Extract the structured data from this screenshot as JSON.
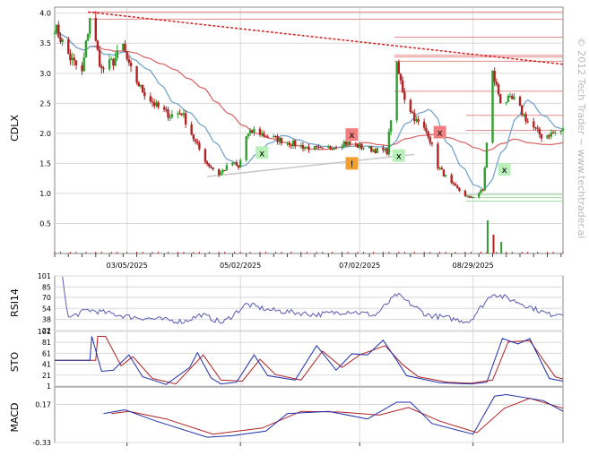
{
  "ticker": "CDLX",
  "watermark": "© 2012 Tech Trader ~ www.techtrader.ai",
  "colors": {
    "up": "#2fa02f",
    "down": "#b22222",
    "ma_short": "#6b9fc9",
    "ma_long": "#d96060",
    "trend": "#d42020",
    "support": "#c8c8c8",
    "rsi": "#5a5ab4",
    "osc_a": "#1f2fa8",
    "osc_b": "#b02020",
    "sell_marker": "#f08080",
    "buy_marker": "#b9efb9",
    "warn_marker": "#f0a030",
    "grid": "#d8d8d8"
  },
  "chart_data": [
    {
      "type": "candlestick",
      "title": "CDLX",
      "ylabel": "CDLX",
      "x_range": [
        "2025-01-27",
        "2025-10-14"
      ],
      "ylim": [
        0,
        4.1
      ],
      "yticks": [
        0.5,
        1.0,
        1.5,
        2.0,
        2.5,
        3.0,
        3.5,
        4.0
      ],
      "xticks": [
        "03/05/2025",
        "05/02/2025",
        "07/02/2025",
        "08/29/2025"
      ],
      "grid": true,
      "close_path": [
        [
          "2025-01-27",
          3.78
        ],
        [
          "2025-02-04",
          3.25
        ],
        [
          "2025-02-10",
          3.0
        ],
        [
          "2025-02-14",
          3.95
        ],
        [
          "2025-02-20",
          3.05
        ],
        [
          "2025-02-26",
          3.2
        ],
        [
          "2025-03-03",
          3.45
        ],
        [
          "2025-03-06",
          3.1
        ],
        [
          "2025-03-12",
          2.75
        ],
        [
          "2025-03-20",
          2.45
        ],
        [
          "2025-03-27",
          2.3
        ],
        [
          "2025-04-02",
          2.35
        ],
        [
          "2025-04-09",
          1.85
        ],
        [
          "2025-04-15",
          1.5
        ],
        [
          "2025-04-21",
          1.32
        ],
        [
          "2025-04-28",
          1.52
        ],
        [
          "2025-05-01",
          1.42
        ],
        [
          "2025-05-05",
          1.95
        ],
        [
          "2025-05-09",
          2.05
        ],
        [
          "2025-05-16",
          1.95
        ],
        [
          "2025-05-23",
          1.88
        ],
        [
          "2025-06-03",
          1.78
        ],
        [
          "2025-06-13",
          1.72
        ],
        [
          "2025-06-24",
          1.85
        ],
        [
          "2025-07-02",
          1.78
        ],
        [
          "2025-07-10",
          1.72
        ],
        [
          "2025-07-16",
          1.7
        ],
        [
          "2025-07-21",
          3.1
        ],
        [
          "2025-07-25",
          2.6
        ],
        [
          "2025-07-31",
          2.2
        ],
        [
          "2025-08-06",
          2.0
        ],
        [
          "2025-08-11",
          1.45
        ],
        [
          "2025-08-18",
          1.15
        ],
        [
          "2025-08-27",
          0.92
        ],
        [
          "2025-09-03",
          1.05
        ],
        [
          "2025-09-08",
          3.0
        ],
        [
          "2025-09-12",
          2.55
        ],
        [
          "2025-09-19",
          2.55
        ],
        [
          "2025-09-26",
          2.2
        ],
        [
          "2025-10-03",
          1.95
        ],
        [
          "2025-10-14",
          2.05
        ]
      ],
      "trend_line": [
        [
          "2025-02-13",
          4.02
        ],
        [
          "2025-10-14",
          3.15
        ]
      ],
      "support_line": [
        [
          "2025-04-15",
          1.28
        ],
        [
          "2025-07-30",
          1.65
        ]
      ],
      "horizontal_levels": [
        4.02,
        3.9,
        3.6,
        3.3,
        3.27,
        3.2,
        2.7,
        2.3,
        2.05,
        0.98,
        0.93,
        0.87
      ],
      "markers": [
        {
          "date": "2025-05-13",
          "price": 1.68,
          "kind": "buy",
          "label": "x"
        },
        {
          "date": "2025-06-28",
          "price": 1.98,
          "kind": "sell",
          "label": "x"
        },
        {
          "date": "2025-06-28",
          "price": 1.5,
          "kind": "warning",
          "label": "!"
        },
        {
          "date": "2025-07-22",
          "price": 1.63,
          "kind": "buy",
          "label": "x"
        },
        {
          "date": "2025-08-12",
          "price": 2.02,
          "kind": "sell",
          "label": "x"
        },
        {
          "date": "2025-09-14",
          "price": 1.4,
          "kind": "buy",
          "label": "x"
        }
      ]
    },
    {
      "type": "line",
      "ylabel": "RSI14",
      "ylim": [
        22,
        101
      ],
      "yticks": [
        22,
        38,
        54,
        70,
        85,
        101
      ],
      "series": [
        {
          "values": [
            [
              "2025-01-31",
              99
            ],
            [
              "2025-02-03",
              40
            ],
            [
              "2025-02-13",
              52
            ],
            [
              "2025-03-06",
              42
            ],
            [
              "2025-04-03",
              35
            ],
            [
              "2025-04-12",
              45
            ],
            [
              "2025-04-23",
              33
            ],
            [
              "2025-05-05",
              60
            ],
            [
              "2025-05-16",
              52
            ],
            [
              "2025-06-10",
              45
            ],
            [
              "2025-06-27",
              50
            ],
            [
              "2025-07-10",
              44
            ],
            [
              "2025-07-21",
              74
            ],
            [
              "2025-08-05",
              45
            ],
            [
              "2025-08-27",
              35
            ],
            [
              "2025-09-08",
              76
            ],
            [
              "2025-09-22",
              62
            ],
            [
              "2025-10-07",
              45
            ],
            [
              "2025-10-14",
              48
            ]
          ]
        }
      ]
    },
    {
      "type": "line",
      "ylabel": "STO",
      "ylim": [
        1,
        101
      ],
      "yticks": [
        1,
        21,
        41,
        61,
        81,
        101
      ],
      "series": [
        {
          "values": [
            [
              "2025-01-27",
              48
            ],
            [
              "2025-02-14",
              48
            ],
            [
              "2025-02-15",
              92
            ],
            [
              "2025-02-20",
              28
            ],
            [
              "2025-02-26",
              30
            ],
            [
              "2025-03-06",
              58
            ],
            [
              "2025-03-13",
              18
            ],
            [
              "2025-03-25",
              4
            ],
            [
              "2025-04-06",
              35
            ],
            [
              "2025-04-10",
              62
            ],
            [
              "2025-04-17",
              16
            ],
            [
              "2025-04-22",
              5
            ],
            [
              "2025-04-30",
              8
            ],
            [
              "2025-05-09",
              58
            ],
            [
              "2025-05-16",
              20
            ],
            [
              "2025-05-30",
              12
            ],
            [
              "2025-06-10",
              75
            ],
            [
              "2025-06-20",
              30
            ],
            [
              "2025-06-28",
              60
            ],
            [
              "2025-07-06",
              58
            ],
            [
              "2025-07-14",
              85
            ],
            [
              "2025-07-21",
              48
            ],
            [
              "2025-07-26",
              20
            ],
            [
              "2025-08-12",
              7
            ],
            [
              "2025-08-28",
              5
            ],
            [
              "2025-09-05",
              8
            ],
            [
              "2025-09-13",
              88
            ],
            [
              "2025-09-21",
              78
            ],
            [
              "2025-09-27",
              88
            ],
            [
              "2025-10-07",
              15
            ],
            [
              "2025-10-14",
              10
            ]
          ]
        },
        {
          "values": [
            [
              "2025-01-27",
              48
            ],
            [
              "2025-02-17",
              48
            ],
            [
              "2025-02-18",
              92
            ],
            [
              "2025-02-22",
              92
            ],
            [
              "2025-03-02",
              38
            ],
            [
              "2025-03-08",
              55
            ],
            [
              "2025-03-18",
              15
            ],
            [
              "2025-03-30",
              5
            ],
            [
              "2025-04-13",
              58
            ],
            [
              "2025-04-22",
              12
            ],
            [
              "2025-05-03",
              10
            ],
            [
              "2025-05-12",
              50
            ],
            [
              "2025-05-20",
              22
            ],
            [
              "2025-06-02",
              12
            ],
            [
              "2025-06-13",
              65
            ],
            [
              "2025-06-23",
              35
            ],
            [
              "2025-07-02",
              58
            ],
            [
              "2025-07-15",
              75
            ],
            [
              "2025-07-24",
              40
            ],
            [
              "2025-08-01",
              18
            ],
            [
              "2025-08-16",
              8
            ],
            [
              "2025-08-28",
              6
            ],
            [
              "2025-09-08",
              12
            ],
            [
              "2025-09-16",
              82
            ],
            [
              "2025-09-27",
              84
            ],
            [
              "2025-10-10",
              18
            ],
            [
              "2025-10-14",
              14
            ]
          ]
        }
      ]
    },
    {
      "type": "line",
      "ylabel": "MACD",
      "ylim": [
        -0.33,
        0.4
      ],
      "yticks": [
        -0.33,
        0.17
      ],
      "series": [
        {
          "values": [
            [
              "2025-02-21",
              0.05
            ],
            [
              "2025-03-04",
              0.1
            ],
            [
              "2025-03-20",
              -0.05
            ],
            [
              "2025-04-15",
              -0.26
            ],
            [
              "2025-04-28",
              -0.24
            ],
            [
              "2025-05-15",
              -0.18
            ],
            [
              "2025-05-26",
              0.05
            ],
            [
              "2025-06-16",
              0.08
            ],
            [
              "2025-07-06",
              -0.02
            ],
            [
              "2025-07-21",
              0.2
            ],
            [
              "2025-07-28",
              0.2
            ],
            [
              "2025-08-08",
              -0.08
            ],
            [
              "2025-08-29",
              -0.22
            ],
            [
              "2025-09-09",
              0.28
            ],
            [
              "2025-09-15",
              0.3
            ],
            [
              "2025-10-04",
              0.22
            ],
            [
              "2025-10-14",
              0.08
            ]
          ]
        },
        {
          "values": [
            [
              "2025-02-25",
              0.05
            ],
            [
              "2025-03-06",
              0.08
            ],
            [
              "2025-03-25",
              -0.02
            ],
            [
              "2025-04-18",
              -0.22
            ],
            [
              "2025-05-13",
              -0.14
            ],
            [
              "2025-06-02",
              0.08
            ],
            [
              "2025-06-22",
              0.07
            ],
            [
              "2025-07-12",
              0.03
            ],
            [
              "2025-07-27",
              0.13
            ],
            [
              "2025-08-12",
              -0.05
            ],
            [
              "2025-08-31",
              -0.2
            ],
            [
              "2025-09-14",
              0.12
            ],
            [
              "2025-09-27",
              0.25
            ],
            [
              "2025-10-14",
              0.12
            ]
          ]
        }
      ]
    }
  ]
}
